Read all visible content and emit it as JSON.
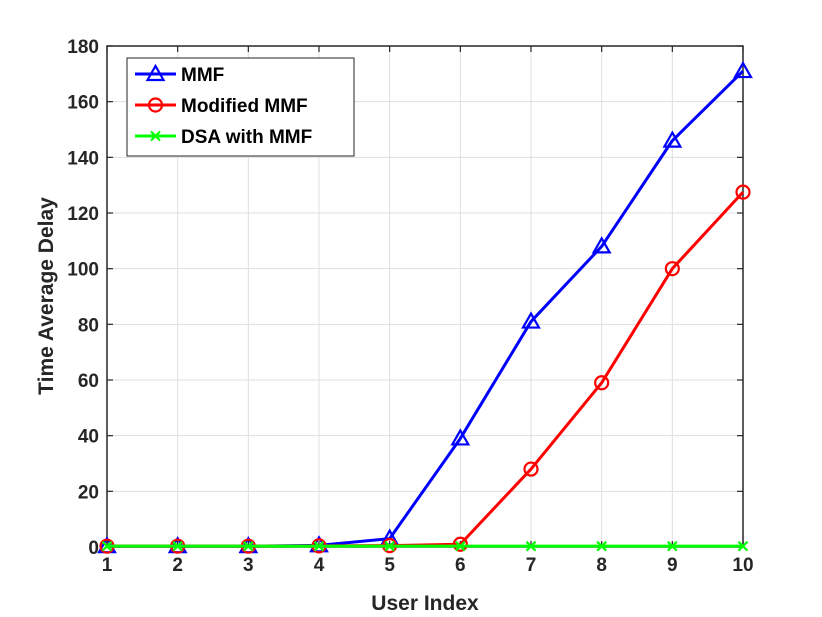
{
  "chart_data": {
    "type": "line",
    "xlabel": "User Index",
    "ylabel": "Time Average Delay",
    "xlim": [
      1,
      10
    ],
    "ylim": [
      0,
      180
    ],
    "xticks": [
      "1",
      "2",
      "3",
      "4",
      "5",
      "6",
      "7",
      "8",
      "9",
      "10"
    ],
    "yticks": [
      "0",
      "20",
      "40",
      "60",
      "80",
      "100",
      "120",
      "140",
      "160",
      "180"
    ],
    "grid": true,
    "legend_position": "top-left",
    "x": [
      1,
      2,
      3,
      4,
      5,
      6,
      7,
      8,
      9,
      10
    ],
    "series": [
      {
        "name": "MMF",
        "color": "#0000ff",
        "marker": "triangle",
        "values": [
          0.3,
          0.3,
          0.3,
          0.6,
          3,
          39,
          81,
          108,
          146,
          171
        ]
      },
      {
        "name": "Modified MMF",
        "color": "#ff0000",
        "marker": "circle",
        "values": [
          0.3,
          0.3,
          0.3,
          0.4,
          0.5,
          1,
          28,
          59,
          100,
          127.5
        ]
      },
      {
        "name": "DSA with MMF",
        "color": "#00ff00",
        "marker": "x",
        "values": [
          0.3,
          0.3,
          0.3,
          0.3,
          0.3,
          0.3,
          0.3,
          0.3,
          0.3,
          0.3
        ]
      }
    ]
  }
}
